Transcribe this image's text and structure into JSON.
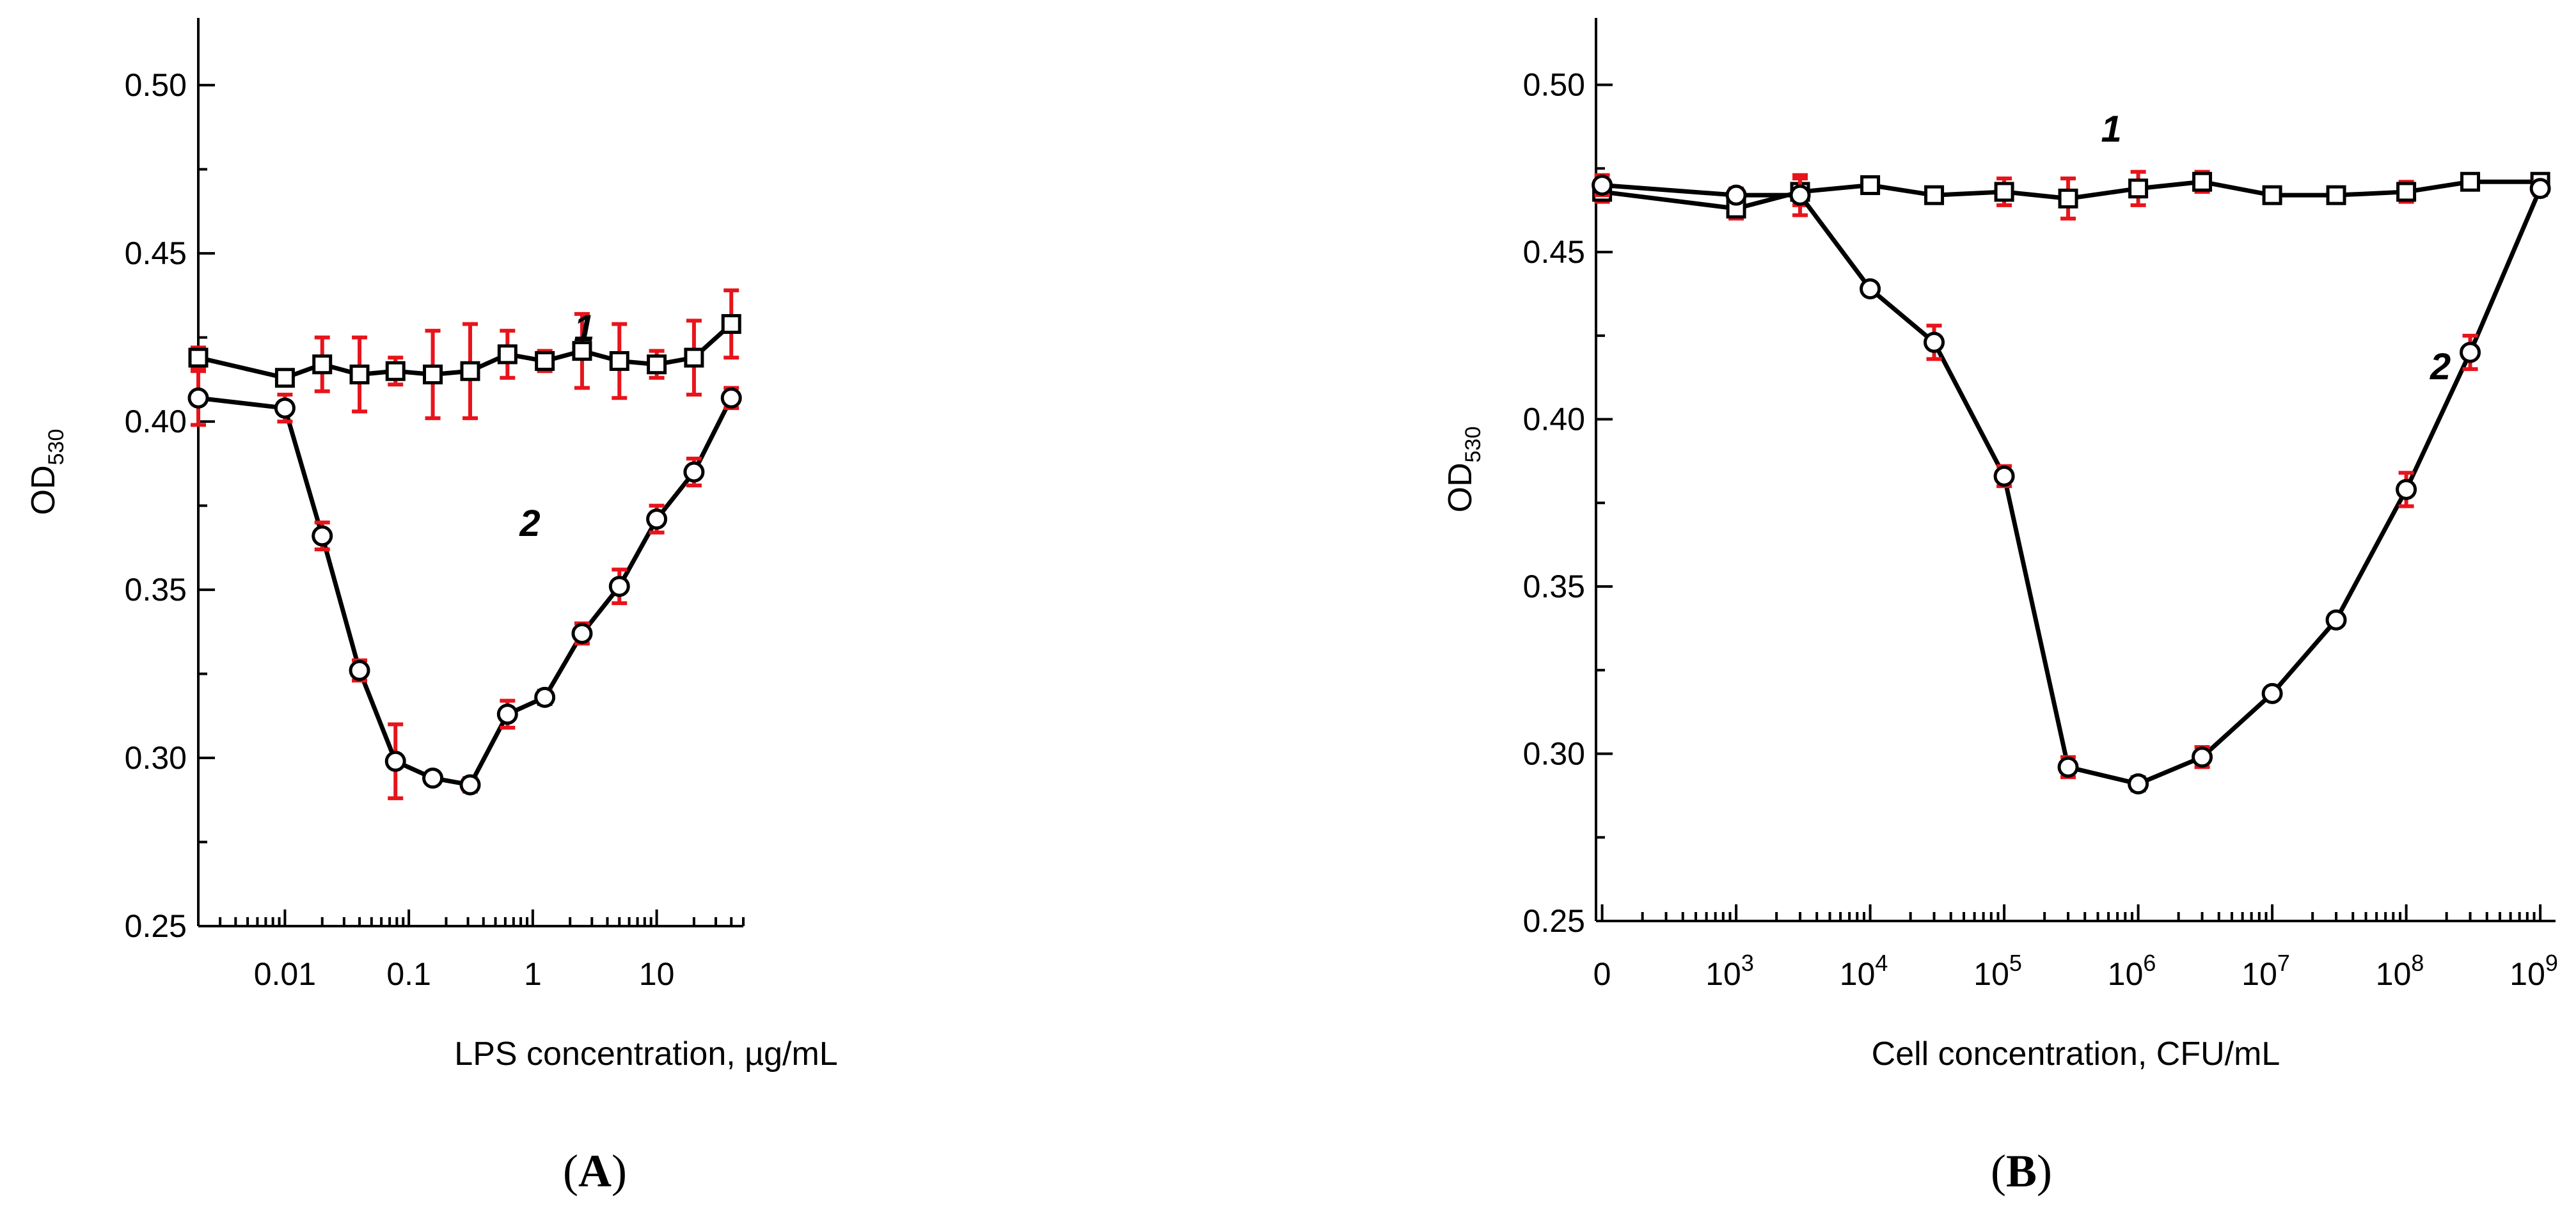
{
  "chart_data": [
    {
      "panel": "A",
      "type": "line",
      "xscale": "log",
      "xlim": [
        0.002,
        50
      ],
      "ylim": [
        0.25,
        0.52
      ],
      "xlabel": "LPS concentration, µg/mL",
      "ylabel": "OD",
      "ylabel_sub": "530",
      "y_ticks": [
        {
          "v": 0.25,
          "label": "0.25"
        },
        {
          "v": 0.3,
          "label": "0.30"
        },
        {
          "v": 0.35,
          "label": "0.35"
        },
        {
          "v": 0.4,
          "label": "0.40"
        },
        {
          "v": 0.45,
          "label": "0.45"
        },
        {
          "v": 0.5,
          "label": "0.50"
        }
      ],
      "x_ticks": [
        {
          "v": 0.01,
          "label": "0.01"
        },
        {
          "v": 0.1,
          "label": "0.1"
        },
        {
          "v": 1,
          "label": "1"
        },
        {
          "v": 10,
          "label": "10"
        }
      ],
      "panel_label": {
        "open": "(",
        "letter": "A",
        "close": ")"
      },
      "series": [
        {
          "name": "1",
          "marker": "square",
          "label_pos": [
            2.6,
            0.424
          ],
          "points": [
            {
              "x": 0.002,
              "y": 0.419,
              "err": 0.003
            },
            {
              "x": 0.01,
              "y": 0.413,
              "err": 0.002
            },
            {
              "x": 0.02,
              "y": 0.417,
              "err": 0.008
            },
            {
              "x": 0.04,
              "y": 0.414,
              "err": 0.011
            },
            {
              "x": 0.078,
              "y": 0.415,
              "err": 0.004
            },
            {
              "x": 0.156,
              "y": 0.414,
              "err": 0.013
            },
            {
              "x": 0.3125,
              "y": 0.415,
              "err": 0.014
            },
            {
              "x": 0.625,
              "y": 0.42,
              "err": 0.007
            },
            {
              "x": 1.25,
              "y": 0.418,
              "err": 0.003
            },
            {
              "x": 2.5,
              "y": 0.421,
              "err": 0.011
            },
            {
              "x": 5,
              "y": 0.418,
              "err": 0.011
            },
            {
              "x": 10,
              "y": 0.417,
              "err": 0.004
            },
            {
              "x": 20,
              "y": 0.419,
              "err": 0.011
            },
            {
              "x": 40,
              "y": 0.429,
              "err": 0.01
            }
          ]
        },
        {
          "name": "2",
          "marker": "circle",
          "label_pos": [
            0.95,
            0.366
          ],
          "points": [
            {
              "x": 0.002,
              "y": 0.407,
              "err": 0.008
            },
            {
              "x": 0.01,
              "y": 0.404,
              "err": 0.004
            },
            {
              "x": 0.02,
              "y": 0.366,
              "err": 0.004
            },
            {
              "x": 0.04,
              "y": 0.326,
              "err": 0.003
            },
            {
              "x": 0.078,
              "y": 0.299,
              "err": 0.011
            },
            {
              "x": 0.156,
              "y": 0.294,
              "err": 0.001
            },
            {
              "x": 0.3125,
              "y": 0.292,
              "err": 0.002
            },
            {
              "x": 0.625,
              "y": 0.313,
              "err": 0.004
            },
            {
              "x": 1.25,
              "y": 0.318,
              "err": 0.002
            },
            {
              "x": 2.5,
              "y": 0.337,
              "err": 0.003
            },
            {
              "x": 5,
              "y": 0.351,
              "err": 0.005
            },
            {
              "x": 10,
              "y": 0.371,
              "err": 0.004
            },
            {
              "x": 20,
              "y": 0.385,
              "err": 0.004
            },
            {
              "x": 40,
              "y": 0.407,
              "err": 0.003
            }
          ]
        }
      ]
    },
    {
      "panel": "B",
      "type": "line",
      "xscale": "log",
      "xlim": [
        90,
        1300000000
      ],
      "ylim": [
        0.25,
        0.52
      ],
      "xlabel": "Cell concentration, CFU/mL",
      "ylabel": "OD",
      "ylabel_sub": "530",
      "zero_point_x": 100,
      "y_ticks": [
        {
          "v": 0.25,
          "label": "0.25"
        },
        {
          "v": 0.3,
          "label": "0.30"
        },
        {
          "v": 0.35,
          "label": "0.35"
        },
        {
          "v": 0.4,
          "label": "0.40"
        },
        {
          "v": 0.45,
          "label": "0.45"
        },
        {
          "v": 0.5,
          "label": "0.50"
        }
      ],
      "x_ticks": [
        {
          "v": 100,
          "base": "0",
          "exp": ""
        },
        {
          "v": 1000,
          "base": "10",
          "exp": "3"
        },
        {
          "v": 10000,
          "base": "10",
          "exp": "4"
        },
        {
          "v": 100000,
          "base": "10",
          "exp": "5"
        },
        {
          "v": 1000000,
          "base": "10",
          "exp": "6"
        },
        {
          "v": 10000000,
          "base": "10",
          "exp": "7"
        },
        {
          "v": 100000000,
          "base": "10",
          "exp": "8"
        },
        {
          "v": 1000000000,
          "base": "10",
          "exp": "9"
        }
      ],
      "panel_label": {
        "open": "(",
        "letter": "B",
        "close": ")"
      },
      "series": [
        {
          "name": "1",
          "marker": "square",
          "label_pos": [
            630000,
            0.483
          ],
          "points": [
            {
              "x": 100,
              "y": 0.468,
              "err": 0.003
            },
            {
              "x": 1000,
              "y": 0.463,
              "err": 0.003
            },
            {
              "x": 3000,
              "y": 0.468,
              "err": 0.004
            },
            {
              "x": 10000,
              "y": 0.47,
              "err": 0.001
            },
            {
              "x": 30000,
              "y": 0.467,
              "err": 0.002
            },
            {
              "x": 100000,
              "y": 0.468,
              "err": 0.004
            },
            {
              "x": 300000,
              "y": 0.466,
              "err": 0.006
            },
            {
              "x": 1000000,
              "y": 0.469,
              "err": 0.005
            },
            {
              "x": 3000000,
              "y": 0.471,
              "err": 0.003
            },
            {
              "x": 10000000,
              "y": 0.467,
              "err": 0.001
            },
            {
              "x": 30000000,
              "y": 0.467,
              "err": 0.001
            },
            {
              "x": 100000000,
              "y": 0.468,
              "err": 0.003
            },
            {
              "x": 300000000,
              "y": 0.471,
              "err": 0.002
            },
            {
              "x": 1000000000,
              "y": 0.471,
              "err": 0.002
            }
          ]
        },
        {
          "name": "2",
          "marker": "circle",
          "label_pos": [
            180000000,
            0.412
          ],
          "points": [
            {
              "x": 100,
              "y": 0.47,
              "err": 0.003
            },
            {
              "x": 1000,
              "y": 0.467,
              "err": 0.002
            },
            {
              "x": 3000,
              "y": 0.467,
              "err": 0.006
            },
            {
              "x": 10000,
              "y": 0.439,
              "err": 0.001
            },
            {
              "x": 30000,
              "y": 0.423,
              "err": 0.005
            },
            {
              "x": 100000,
              "y": 0.383,
              "err": 0.003
            },
            {
              "x": 300000,
              "y": 0.296,
              "err": 0.003
            },
            {
              "x": 1000000,
              "y": 0.291,
              "err": 0.002
            },
            {
              "x": 3000000,
              "y": 0.299,
              "err": 0.003
            },
            {
              "x": 10000000,
              "y": 0.318,
              "err": 0.001
            },
            {
              "x": 30000000,
              "y": 0.34,
              "err": 0.001
            },
            {
              "x": 100000000,
              "y": 0.379,
              "err": 0.005
            },
            {
              "x": 300000000,
              "y": 0.42,
              "err": 0.005
            },
            {
              "x": 1000000000,
              "y": 0.469,
              "err": 0.002
            }
          ]
        }
      ]
    }
  ]
}
